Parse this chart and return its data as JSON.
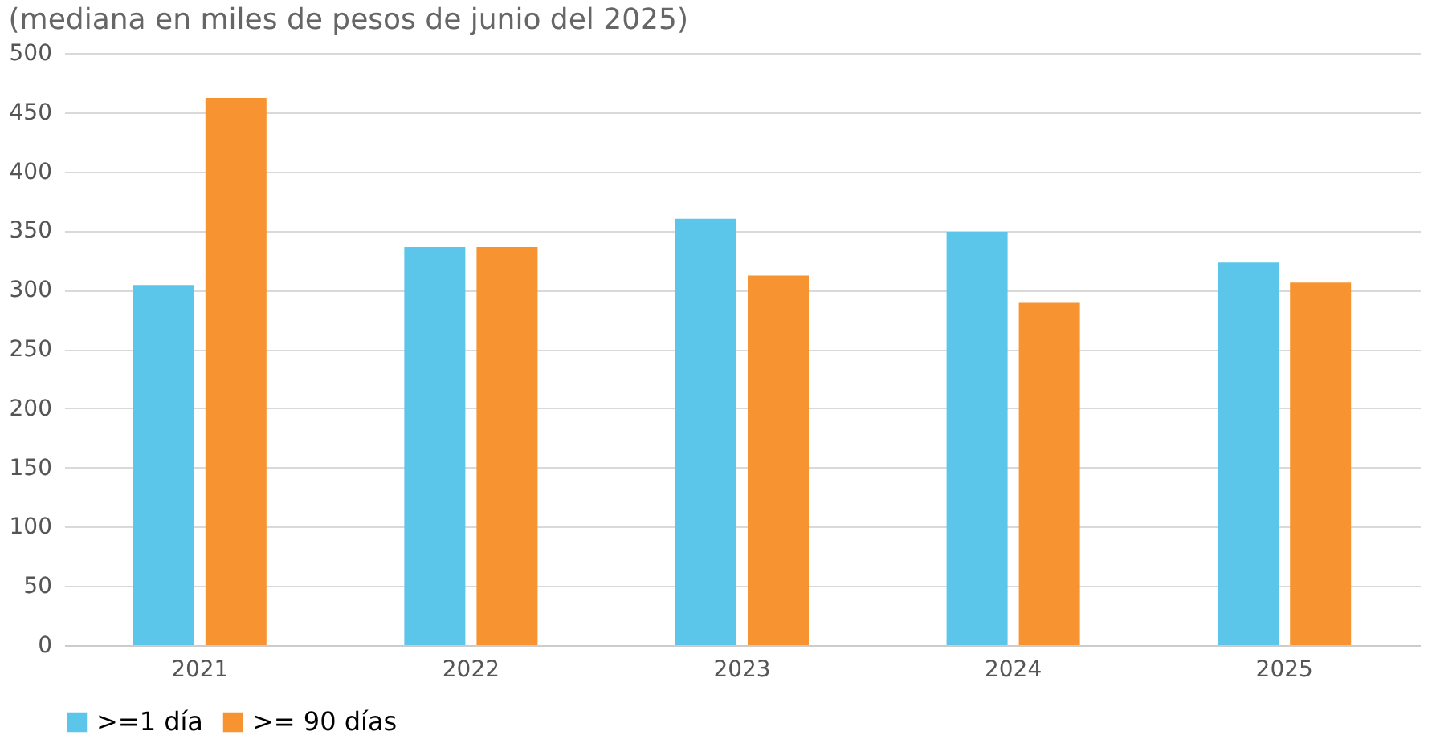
{
  "chart_data": {
    "type": "bar",
    "subtitle": "(mediana en miles de pesos de junio del 2025)",
    "categories": [
      "2021",
      "2022",
      "2023",
      "2024",
      "2025"
    ],
    "series": [
      {
        "name": ">=1 día",
        "color": "#5bc5ea",
        "values": [
          304,
          336,
          360,
          349,
          323
        ]
      },
      {
        "name": ">= 90 días",
        "color": "#f79431",
        "values": [
          462,
          336,
          312,
          289,
          306
        ]
      }
    ],
    "ylim": [
      0,
      500
    ],
    "yticks": [
      0,
      50,
      100,
      150,
      200,
      250,
      300,
      350,
      400,
      450,
      500
    ],
    "grid": "y",
    "legend": "bottom"
  }
}
